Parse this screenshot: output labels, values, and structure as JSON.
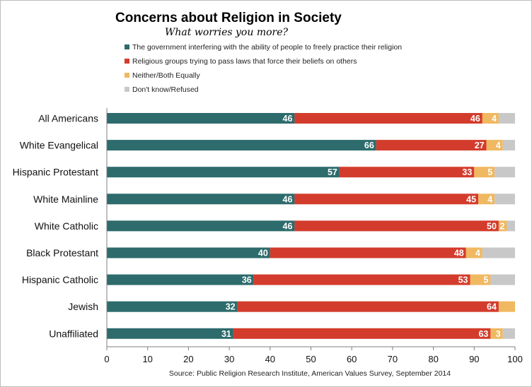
{
  "chart_data": {
    "type": "bar",
    "orientation": "horizontal",
    "stacked": true,
    "title": "Concerns about Religion in Society",
    "subtitle": "What worries you more?",
    "categories": [
      "All Americans",
      "White Evangelical",
      "Hispanic Protestant",
      "White Mainline",
      "White Catholic",
      "Black Protestant",
      "Hispanic Catholic",
      "Jewish",
      "Unaffiliated"
    ],
    "series": [
      {
        "name": "The government interfering with the ability of people to freely practice their religion",
        "color": "#2d6b6c",
        "values": [
          46,
          66,
          57,
          46,
          46,
          40,
          36,
          32,
          31
        ],
        "labels": [
          "46",
          "66",
          "57",
          "46",
          "46",
          "40",
          "36",
          "32",
          "31"
        ]
      },
      {
        "name": "Religious groups trying to pass laws that force their beliefs on others",
        "color": "#d33c2c",
        "values": [
          46,
          27,
          33,
          45,
          50,
          48,
          53,
          64,
          63
        ],
        "labels": [
          "46",
          "27",
          "33",
          "45",
          "50",
          "48",
          "53",
          "64",
          "63"
        ]
      },
      {
        "name": "Neither/Both Equally",
        "color": "#f0b860",
        "values": [
          4,
          4,
          5,
          4,
          2,
          4,
          5,
          4,
          3
        ],
        "labels": [
          "4",
          "4",
          "5",
          "4",
          "2",
          "4",
          "5",
          "",
          "3"
        ]
      },
      {
        "name": "Don't know/Refused",
        "color": "#c8c8c8",
        "values": [
          4,
          3,
          5,
          5,
          2,
          8,
          6,
          0,
          3
        ],
        "labels": [
          "",
          "",
          "",
          "",
          "",
          "",
          "",
          "",
          ""
        ]
      }
    ],
    "xlim": [
      0,
      100
    ],
    "xticks": [
      0,
      10,
      20,
      30,
      40,
      50,
      60,
      70,
      80,
      90,
      100
    ],
    "xtick_labels": [
      "0",
      "10",
      "20",
      "30",
      "40",
      "50",
      "60",
      "70",
      "80",
      "90",
      "100"
    ],
    "legend_position": "top-left",
    "grid": false,
    "source": "Source: Public Religion Research Institute, American Values Survey, September 2014"
  }
}
